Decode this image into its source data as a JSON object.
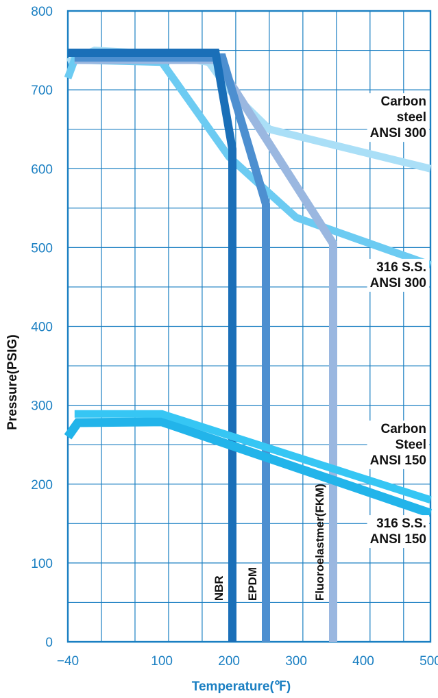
{
  "chart_data": {
    "type": "line",
    "title": "",
    "xlabel": "Temperature(℉)",
    "ylabel": "Pressure(PSIG)",
    "xlim": [
      -40,
      500
    ],
    "ylim": [
      0,
      800
    ],
    "grid": true,
    "x_ticks": [
      -40,
      100,
      200,
      300,
      400,
      500
    ],
    "x_grid": [
      -40,
      10,
      60,
      110,
      160,
      210,
      260,
      310,
      360,
      410,
      460,
      510
    ],
    "y_ticks": [
      0,
      100,
      200,
      300,
      400,
      500,
      600,
      700,
      800
    ],
    "y_grid": [
      50,
      100,
      150,
      200,
      250,
      300,
      350,
      400,
      450,
      500,
      550,
      600,
      650,
      700,
      750
    ],
    "colors": {
      "grid": "#1a7fc2",
      "ticks": "#1a7fc2",
      "xlabel": "#1a7fc2",
      "ylabel": "#111111"
    },
    "series": [
      {
        "color": "#aadff7",
        "width": 11,
        "x": [
          -40,
          0,
          100,
          170,
          200,
          260,
          500
        ],
        "y": [
          735,
          750,
          745,
          735,
          700,
          650,
          600
        ]
      },
      {
        "color": "#6ccbf2",
        "width": 11,
        "x": [
          -40,
          -30,
          100,
          200,
          300,
          500
        ],
        "y": [
          715,
          738,
          735,
          615,
          538,
          478
        ]
      },
      {
        "color": "#9ab7e0",
        "width": 12,
        "x": [
          -30,
          180,
          355,
          355
        ],
        "y": [
          738,
          738,
          505,
          0
        ]
      },
      {
        "color": "#4d8fd0",
        "width": 12,
        "x": [
          -30,
          190,
          255,
          255
        ],
        "y": [
          741,
          741,
          555,
          0
        ]
      },
      {
        "color": "#1a6fb8",
        "width": 12,
        "x": [
          -40,
          180,
          205,
          205
        ],
        "y": [
          747,
          747,
          625,
          0
        ]
      },
      {
        "color": "#22b4ea",
        "width": 13,
        "x": [
          -40,
          -25,
          100,
          500
        ],
        "y": [
          260,
          278,
          279,
          163
        ]
      },
      {
        "color": "#36c6f4",
        "width": 11,
        "x": [
          -30,
          100,
          500
        ],
        "y": [
          289,
          289,
          180
        ]
      }
    ],
    "annotations": [
      {
        "lines": [
          "Carbon",
          "steel",
          "ANSI 300"
        ],
        "x": 500,
        "y": 680
      },
      {
        "lines": [
          "316 S.S.",
          "ANSI 300"
        ],
        "x": 500,
        "y": 470
      },
      {
        "lines": [
          "Carbon",
          "Steel",
          "ANSI 150"
        ],
        "x": 500,
        "y": 265
      },
      {
        "lines": [
          "316 S.S.",
          "ANSI 150"
        ],
        "x": 500,
        "y": 145
      }
    ],
    "vertical_labels": [
      {
        "text": "NBR",
        "x": 205,
        "y": 52
      },
      {
        "text": "EPDM",
        "x": 255,
        "y": 52
      },
      {
        "text": "Fluoroelastmer(FKM)",
        "x": 355,
        "y": 52
      }
    ]
  }
}
